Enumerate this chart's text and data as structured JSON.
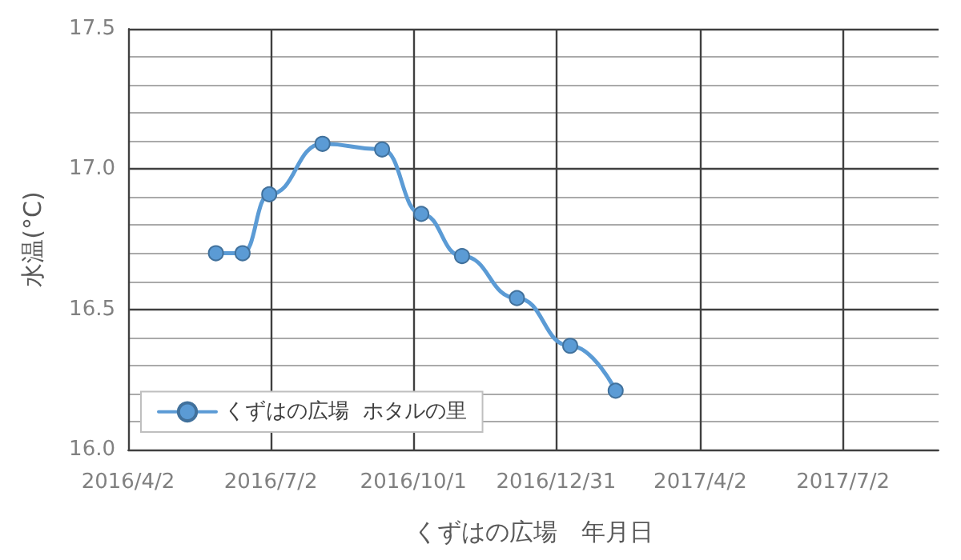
{
  "chart_data": {
    "type": "line",
    "xlabel": "くずはの広場　年月日",
    "ylabel": "水温(°C)",
    "x": [
      "2016-05-28",
      "2016-06-14",
      "2016-07-01",
      "2016-08-04",
      "2016-09-11",
      "2016-10-06",
      "2016-11-01",
      "2016-12-06",
      "2017-01-09",
      "2017-02-07"
    ],
    "series": [
      {
        "name": "くずはの広場  ホタルの里",
        "color": "#5b9bd5",
        "values": [
          16.7,
          16.7,
          16.91,
          17.09,
          17.07,
          16.84,
          16.69,
          16.54,
          16.37,
          16.21
        ]
      }
    ],
    "xlim": [
      "2016-04-02",
      "2017-09-01"
    ],
    "xticks": [
      {
        "value": "2016-04-02",
        "label": "2016/4/2"
      },
      {
        "value": "2016-07-02",
        "label": "2016/7/2"
      },
      {
        "value": "2016-10-01",
        "label": "2016/10/1"
      },
      {
        "value": "2016-12-31",
        "label": "2016/12/31"
      },
      {
        "value": "2017-04-02",
        "label": "2017/4/2"
      },
      {
        "value": "2017-07-02",
        "label": "2017/7/2"
      }
    ],
    "ylim": [
      16,
      17.5
    ],
    "yticks": [
      {
        "value": 16,
        "label": "16.0"
      },
      {
        "value": 16.5,
        "label": "16.5"
      },
      {
        "value": 17,
        "label": "17.0"
      },
      {
        "value": 17.5,
        "label": "17.5"
      }
    ],
    "grid": true,
    "legend": "bottom left",
    "marker": "circle",
    "line_style": "solid"
  }
}
